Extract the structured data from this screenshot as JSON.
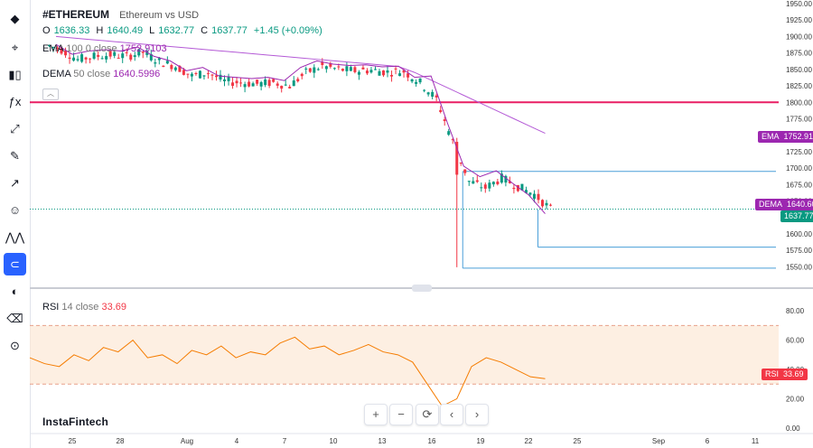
{
  "header": {
    "symbol": "#ETHEREUM",
    "name": "Ethereum vs USD",
    "ohlc": {
      "o_label": "O",
      "o": "1636.33",
      "h_label": "H",
      "h": "1640.49",
      "l_label": "L",
      "l": "1632.77",
      "c_label": "C",
      "c": "1637.77",
      "change": "+1.45 (+0.09%)"
    },
    "ema": {
      "label": "EMA",
      "params": "100  0  close",
      "value": "1752.9103"
    },
    "dema": {
      "label": "DEMA",
      "params": "50  close",
      "value": "1640.5996"
    },
    "rsi": {
      "label": "RSI",
      "params": "14  close",
      "value": "33.69"
    }
  },
  "badges": {
    "ema": {
      "name": "EMA",
      "value": "1752.91",
      "color": "#9c27b0"
    },
    "dema": {
      "name": "DEMA",
      "value": "1640.60",
      "color": "#9c27b0"
    },
    "last": {
      "value": "1637.77",
      "color": "#089981"
    },
    "rsi": {
      "name": "RSI",
      "value": "33.69",
      "color": "#f23645"
    }
  },
  "brand": "InstaFintech",
  "toolbar_icons": [
    "ethereum-logo-icon",
    "crosshair-icon",
    "candles-icon",
    "fx-icon",
    "line-tool-icon",
    "brush-icon",
    "arrow-icon",
    "smile-icon",
    "pattern-icon",
    "magnet-icon",
    "eye-off-icon",
    "trash-icon",
    "camera-icon"
  ],
  "controls": [
    "+",
    "−",
    "⟳",
    "‹",
    "›"
  ],
  "chart_data": [
    {
      "type": "candlestick",
      "symbol": "ETHUSD",
      "ylim": [
        1530,
        1950
      ],
      "y_ticks": [
        1550,
        1575,
        1600,
        1625,
        1650,
        1675,
        1700,
        1725,
        1750,
        1775,
        1800,
        1825,
        1850,
        1875,
        1900,
        1925,
        1950
      ],
      "x_ticks": [
        "25",
        "28",
        "Aug",
        "4",
        "7",
        "10",
        "13",
        "16",
        "19",
        "22",
        "25",
        "Sep",
        "6",
        "11"
      ],
      "horizontal_line": {
        "value": 1800,
        "color": "#e91e63"
      },
      "rectangle": {
        "top": 1695,
        "bottom": 1580
      },
      "rectangle2_bottom": 1548,
      "close_series": [
        {
          "date": "Jul 24",
          "close": 1880
        },
        {
          "date": "Jul 25",
          "close": 1865
        },
        {
          "date": "Jul 26",
          "close": 1870
        },
        {
          "date": "Jul 27",
          "close": 1872
        },
        {
          "date": "Jul 28",
          "close": 1870
        },
        {
          "date": "Jul 29",
          "close": 1876
        },
        {
          "date": "Jul 30",
          "close": 1862
        },
        {
          "date": "Jul 31",
          "close": 1855
        },
        {
          "date": "Aug 1",
          "close": 1840
        },
        {
          "date": "Aug 2",
          "close": 1845
        },
        {
          "date": "Aug 3",
          "close": 1832
        },
        {
          "date": "Aug 4",
          "close": 1830
        },
        {
          "date": "Aug 5",
          "close": 1828
        },
        {
          "date": "Aug 6",
          "close": 1830
        },
        {
          "date": "Aug 7",
          "close": 1825
        },
        {
          "date": "Aug 8",
          "close": 1845
        },
        {
          "date": "Aug 9",
          "close": 1855
        },
        {
          "date": "Aug 10",
          "close": 1850
        },
        {
          "date": "Aug 11",
          "close": 1848
        },
        {
          "date": "Aug 12",
          "close": 1849
        },
        {
          "date": "Aug 13",
          "close": 1846
        },
        {
          "date": "Aug 14",
          "close": 1847
        },
        {
          "date": "Aug 15",
          "close": 1830
        },
        {
          "date": "Aug 16",
          "close": 1805
        },
        {
          "date": "Aug 17",
          "close": 1740
        },
        {
          "date": "Aug 18",
          "close": 1680
        },
        {
          "date": "Aug 19",
          "close": 1670
        },
        {
          "date": "Aug 20",
          "close": 1685
        },
        {
          "date": "Aug 21",
          "close": 1672
        },
        {
          "date": "Aug 22",
          "close": 1660
        },
        {
          "date": "Aug 23",
          "close": 1637.77
        }
      ],
      "ema_series": {
        "name": "EMA",
        "start": 1900,
        "end": 1752.91
      },
      "dema_series": {
        "name": "DEMA",
        "end": 1640.6
      }
    },
    {
      "type": "line",
      "name": "RSI",
      "ylim": [
        0,
        85
      ],
      "y_ticks": [
        0,
        20,
        40,
        60,
        80
      ],
      "band": [
        30,
        70
      ],
      "values": [
        48,
        44,
        42,
        50,
        46,
        55,
        52,
        60,
        48,
        50,
        44,
        53,
        50,
        56,
        48,
        52,
        50,
        58,
        62,
        54,
        56,
        50,
        53,
        57,
        52,
        50,
        45,
        30,
        15,
        20,
        42,
        48,
        45,
        40,
        35,
        33.69
      ]
    }
  ]
}
